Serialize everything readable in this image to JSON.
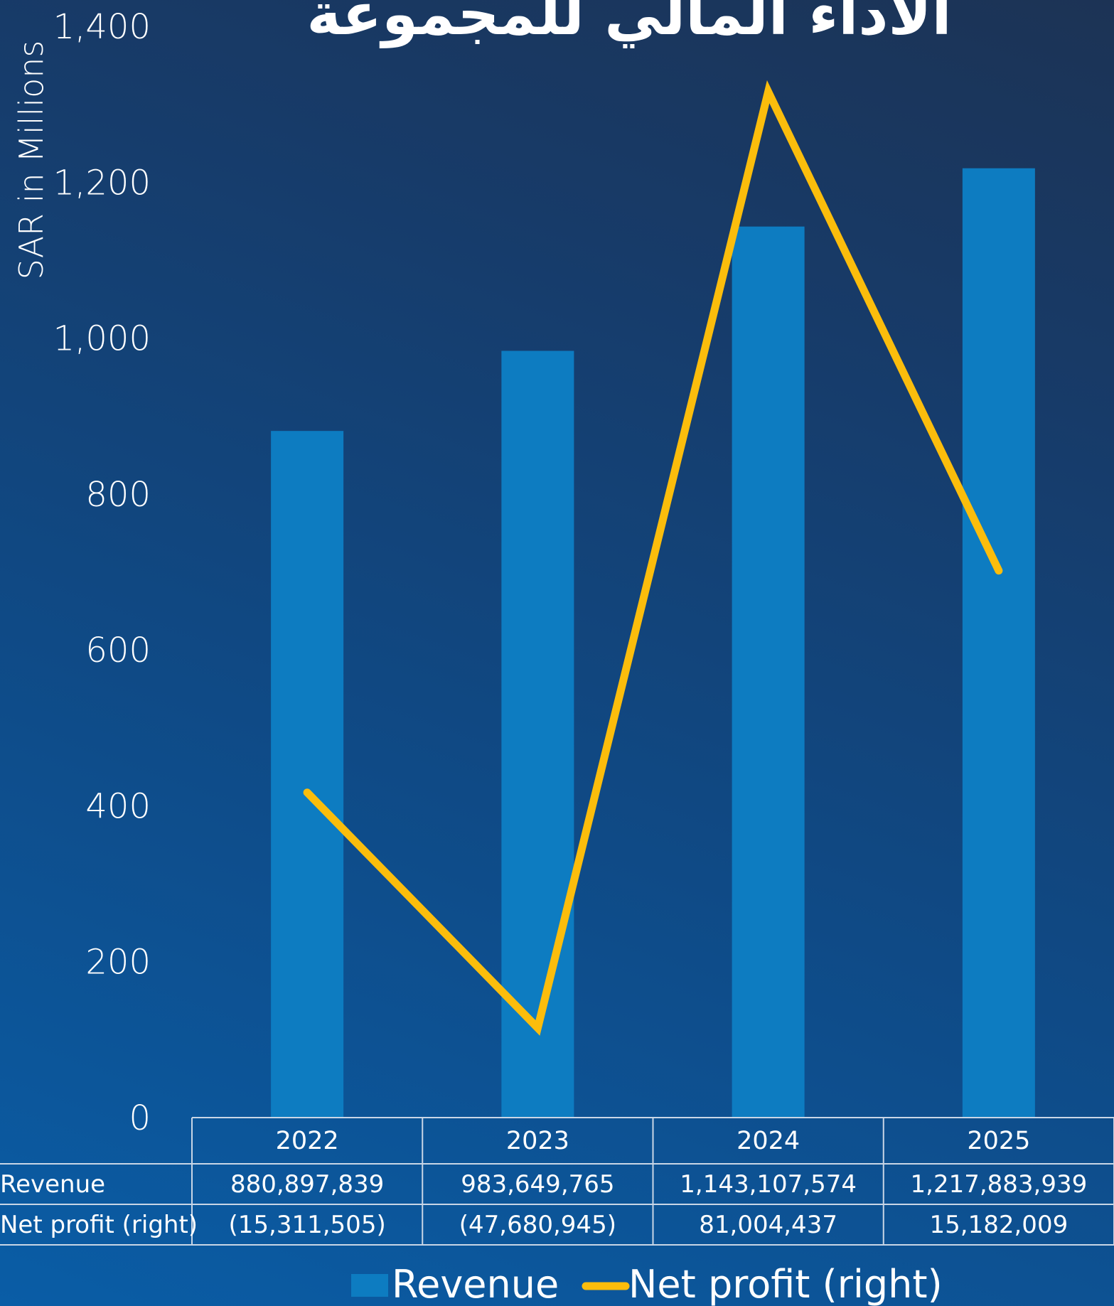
{
  "chart_data": {
    "type": "bar",
    "title": "الأداء المالي للمجموعة",
    "ylabel": "SAR in Millions",
    "ylim": [
      0,
      1400
    ],
    "yticks": [
      "0",
      "200",
      "400",
      "600",
      "800",
      "1,000",
      "1,200",
      "1,400"
    ],
    "ytick_values": [
      0,
      200,
      400,
      600,
      800,
      1000,
      1200,
      1400
    ],
    "y2lim": [
      -60,
      90
    ],
    "categories": [
      "2022",
      "2023",
      "2024",
      "2025"
    ],
    "series": [
      {
        "name": "Revenue",
        "kind": "bar",
        "axis": "left",
        "values": [
          880.897839,
          983.649765,
          1143.107574,
          1217.883939
        ],
        "labels": [
          "880,897,839",
          "983,649,765",
          "1,143,107,574",
          "1,217,883,939"
        ]
      },
      {
        "name": "Net profit (right)",
        "kind": "line",
        "axis": "right",
        "values": [
          -15.311505,
          -47.680945,
          81.004437,
          15.182009
        ],
        "labels": [
          "(15,311,505)",
          "(47,680,945)",
          "81,004,437",
          "15,182,009"
        ]
      }
    ],
    "grid": false,
    "legend": "bottom-center",
    "data_table": true
  },
  "colors": {
    "bar": "#0d7cc1",
    "line": "#fbbd0c",
    "table_line": "#c9d6e6"
  }
}
